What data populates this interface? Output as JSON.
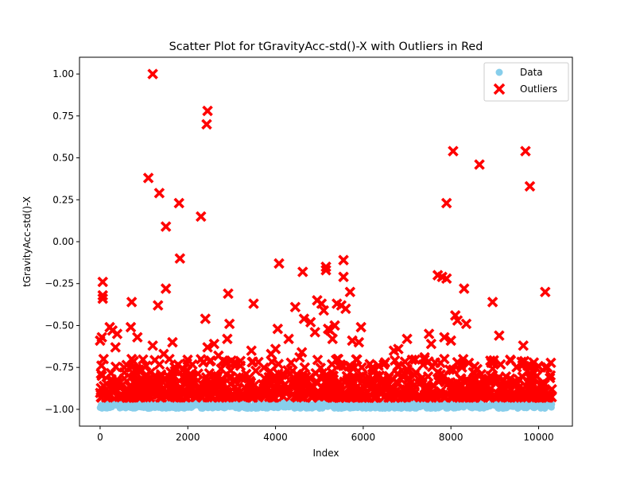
{
  "chart_data": {
    "type": "scatter",
    "title": "Scatter Plot for tGravityAcc-std()-X with Outliers in Red",
    "xlabel": "Index",
    "ylabel": "tGravityAcc-std()-X",
    "xlim": [
      -470,
      10770
    ],
    "ylim": [
      -1.1,
      1.1
    ],
    "x_ticks": [
      0,
      2000,
      4000,
      6000,
      8000,
      10000
    ],
    "x_tick_labels": [
      "0",
      "2000",
      "4000",
      "6000",
      "8000",
      "10000"
    ],
    "y_ticks": [
      -1.0,
      -0.75,
      -0.5,
      -0.25,
      0.0,
      0.25,
      0.5,
      0.75,
      1.0
    ],
    "y_tick_labels": [
      "−1.00",
      "−0.75",
      "−0.50",
      "−0.25",
      "0.00",
      "0.25",
      "0.50",
      "0.75",
      "1.00"
    ],
    "grid": false,
    "legend": {
      "position": "top-right",
      "entries": [
        "Data",
        "Outliers"
      ]
    },
    "colors": {
      "data": "#87CEEB",
      "outliers": "#FF0000"
    },
    "series": [
      {
        "name": "Data",
        "marker": "circle",
        "band_range": [
          -0.995,
          -0.955
        ],
        "points": [
          [
            0,
            -0.99
          ],
          [
            60,
            -0.975
          ],
          [
            150,
            -0.985
          ],
          [
            300,
            -0.97
          ],
          [
            500,
            -0.98
          ],
          [
            700,
            -0.99
          ],
          [
            900,
            -0.975
          ],
          [
            1100,
            -0.985
          ],
          [
            1300,
            -0.97
          ],
          [
            1500,
            -0.98
          ],
          [
            1700,
            -0.99
          ],
          [
            1900,
            -0.975
          ],
          [
            2100,
            -0.985
          ],
          [
            2300,
            -0.97
          ],
          [
            2500,
            -0.98
          ],
          [
            2700,
            -0.99
          ],
          [
            2900,
            -0.975
          ],
          [
            3100,
            -0.985
          ],
          [
            3300,
            -0.97
          ],
          [
            3500,
            -0.98
          ],
          [
            3700,
            -0.99
          ],
          [
            3900,
            -0.975
          ],
          [
            4100,
            -0.985
          ],
          [
            4300,
            -0.97
          ],
          [
            4500,
            -0.98
          ],
          [
            4700,
            -0.99
          ],
          [
            4900,
            -0.975
          ],
          [
            5100,
            -0.985
          ],
          [
            5300,
            -0.97
          ],
          [
            5500,
            -0.98
          ],
          [
            5700,
            -0.95
          ],
          [
            5750,
            -0.935
          ],
          [
            5900,
            -0.975
          ],
          [
            6100,
            -0.985
          ],
          [
            6300,
            -0.97
          ],
          [
            6500,
            -0.98
          ],
          [
            6700,
            -0.99
          ],
          [
            6900,
            -0.975
          ],
          [
            7100,
            -0.985
          ],
          [
            7300,
            -0.97
          ],
          [
            7500,
            -0.98
          ],
          [
            7700,
            -0.99
          ],
          [
            7900,
            -0.975
          ],
          [
            8100,
            -0.985
          ],
          [
            8300,
            -0.97
          ],
          [
            8500,
            -0.98
          ],
          [
            8700,
            -0.99
          ],
          [
            8900,
            -0.975
          ],
          [
            9100,
            -0.985
          ],
          [
            9300,
            -0.97
          ],
          [
            9500,
            -0.98
          ],
          [
            9700,
            -0.99
          ],
          [
            9900,
            -0.975
          ],
          [
            10100,
            -0.985
          ],
          [
            10300,
            -0.97
          ]
        ]
      },
      {
        "name": "Outliers",
        "marker": "x",
        "band_range": [
          -0.93,
          -0.8
        ],
        "points": [
          [
            0,
            -0.59
          ],
          [
            40,
            -0.57
          ],
          [
            60,
            -0.24
          ],
          [
            60,
            -0.32
          ],
          [
            60,
            -0.34
          ],
          [
            80,
            -0.7
          ],
          [
            40,
            -0.8
          ],
          [
            220,
            -0.51
          ],
          [
            280,
            -0.53
          ],
          [
            350,
            -0.63
          ],
          [
            390,
            -0.55
          ],
          [
            700,
            -0.51
          ],
          [
            720,
            -0.36
          ],
          [
            850,
            -0.57
          ],
          [
            720,
            -0.7
          ],
          [
            1050,
            -0.74
          ],
          [
            1100,
            0.38
          ],
          [
            1150,
            -0.78
          ],
          [
            1200,
            -0.62
          ],
          [
            1200,
            1.0
          ],
          [
            1320,
            -0.38
          ],
          [
            1350,
            0.29
          ],
          [
            1450,
            -0.67
          ],
          [
            1500,
            -0.28
          ],
          [
            1500,
            0.09
          ],
          [
            1580,
            -0.7
          ],
          [
            1650,
            -0.6
          ],
          [
            1800,
            0.23
          ],
          [
            1820,
            -0.1
          ],
          [
            1900,
            -0.76
          ],
          [
            2100,
            -0.8
          ],
          [
            2300,
            0.15
          ],
          [
            2350,
            -0.72
          ],
          [
            2400,
            -0.46
          ],
          [
            2430,
            0.7
          ],
          [
            2450,
            0.78
          ],
          [
            2450,
            -0.63
          ],
          [
            2600,
            -0.61
          ],
          [
            2700,
            -0.68
          ],
          [
            2900,
            -0.58
          ],
          [
            2920,
            -0.31
          ],
          [
            2950,
            -0.49
          ],
          [
            3200,
            -0.74
          ],
          [
            3450,
            -0.65
          ],
          [
            3500,
            -0.37
          ],
          [
            3550,
            -0.77
          ],
          [
            3900,
            -0.67
          ],
          [
            4000,
            -0.64
          ],
          [
            4050,
            -0.52
          ],
          [
            4080,
            -0.13
          ],
          [
            4300,
            -0.58
          ],
          [
            4450,
            -0.39
          ],
          [
            4550,
            -0.69
          ],
          [
            4600,
            -0.66
          ],
          [
            4650,
            -0.46
          ],
          [
            4620,
            -0.18
          ],
          [
            4800,
            -0.48
          ],
          [
            4900,
            -0.54
          ],
          [
            4950,
            -0.35
          ],
          [
            5050,
            -0.37
          ],
          [
            5100,
            -0.41
          ],
          [
            5150,
            -0.15
          ],
          [
            5150,
            -0.17
          ],
          [
            5200,
            -0.52
          ],
          [
            5250,
            -0.53
          ],
          [
            5300,
            -0.58
          ],
          [
            5350,
            -0.5
          ],
          [
            5400,
            -0.37
          ],
          [
            5500,
            -0.38
          ],
          [
            5550,
            -0.11
          ],
          [
            5550,
            -0.21
          ],
          [
            5600,
            -0.4
          ],
          [
            5700,
            -0.3
          ],
          [
            5750,
            -0.59
          ],
          [
            5800,
            -0.75
          ],
          [
            5900,
            -0.6
          ],
          [
            5950,
            -0.51
          ],
          [
            6150,
            -0.73
          ],
          [
            6500,
            -0.72
          ],
          [
            6700,
            -0.65
          ],
          [
            6800,
            -0.64
          ],
          [
            7000,
            -0.58
          ],
          [
            7000,
            -0.76
          ],
          [
            7200,
            -0.78
          ],
          [
            7400,
            -0.69
          ],
          [
            7500,
            -0.55
          ],
          [
            7550,
            -0.61
          ],
          [
            7700,
            -0.2
          ],
          [
            7800,
            -0.21
          ],
          [
            7850,
            -0.57
          ],
          [
            7900,
            0.23
          ],
          [
            7900,
            -0.22
          ],
          [
            7850,
            -0.7
          ],
          [
            8000,
            -0.59
          ],
          [
            8050,
            0.54
          ],
          [
            8100,
            -0.44
          ],
          [
            8150,
            -0.47
          ],
          [
            8250,
            -0.75
          ],
          [
            8300,
            -0.28
          ],
          [
            8350,
            -0.49
          ],
          [
            8600,
            -0.76
          ],
          [
            8650,
            0.46
          ],
          [
            8950,
            -0.36
          ],
          [
            8900,
            -0.71
          ],
          [
            9100,
            -0.56
          ],
          [
            9500,
            -0.85
          ],
          [
            9650,
            -0.62
          ],
          [
            9700,
            0.54
          ],
          [
            9750,
            -0.74
          ],
          [
            9800,
            0.33
          ],
          [
            9850,
            -0.77
          ],
          [
            10150,
            -0.3
          ],
          [
            10200,
            -0.75
          ],
          [
            10300,
            -0.88
          ]
        ]
      }
    ]
  }
}
